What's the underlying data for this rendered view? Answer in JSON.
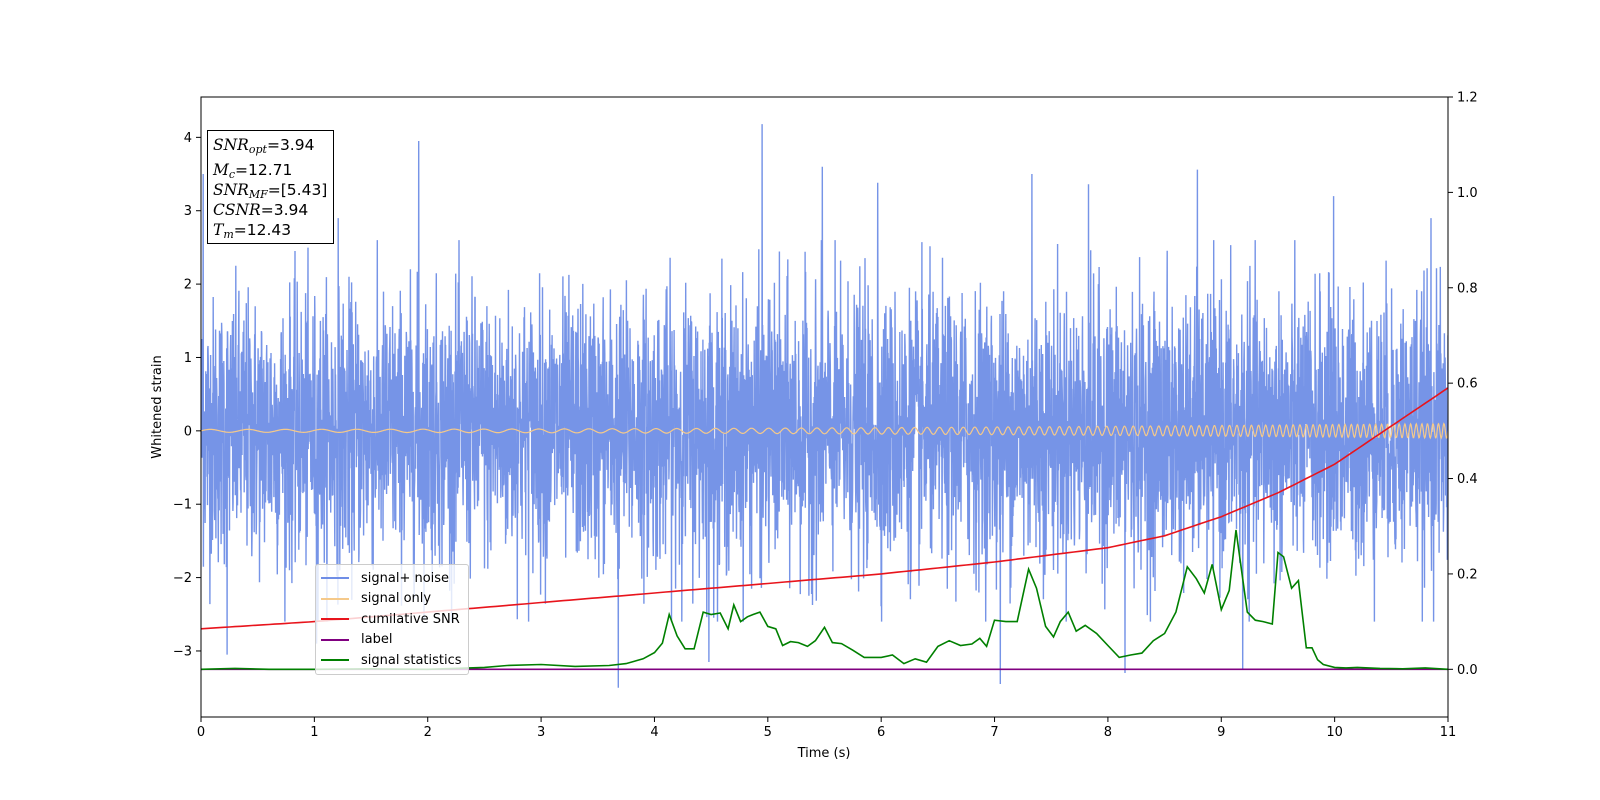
{
  "chart_data": {
    "type": "line",
    "xlabel": "Time (s)",
    "ylabel": "Whitened strain",
    "xlim": [
      0,
      11
    ],
    "ylim_left": [
      -3.9,
      4.55
    ],
    "ylim_right": [
      -0.1,
      1.2
    ],
    "x_ticks": [
      "0",
      "1",
      "2",
      "3",
      "4",
      "5",
      "6",
      "7",
      "8",
      "9",
      "10",
      "11"
    ],
    "y_ticks_left": [
      "−3",
      "−2",
      "−1",
      "0",
      "1",
      "2",
      "3",
      "4"
    ],
    "y_ticks_right": [
      "0.0",
      "0.2",
      "0.4",
      "0.6",
      "0.8",
      "1.0",
      "1.2"
    ],
    "grid": false,
    "legend_position": "lower-left",
    "series": [
      {
        "name": "signal+ noise",
        "axis": "left",
        "color": "#6f8ee6",
        "style": "noise",
        "amplitude_std": 0.9,
        "peaks": [
          [
            0.02,
            3.5
          ],
          [
            0.23,
            -3.05
          ],
          [
            1.02,
            -2.9
          ],
          [
            1.21,
            2.9
          ],
          [
            1.92,
            3.95
          ],
          [
            3.68,
            -3.5
          ],
          [
            4.48,
            -3.15
          ],
          [
            4.95,
            4.18
          ],
          [
            5.48,
            3.6
          ],
          [
            5.97,
            3.38
          ],
          [
            7.05,
            -3.45
          ],
          [
            7.33,
            3.5
          ],
          [
            7.83,
            3.36
          ],
          [
            8.15,
            -3.3
          ],
          [
            8.79,
            3.56
          ],
          [
            9.19,
            -3.25
          ],
          [
            9.99,
            3.2
          ],
          [
            10.85,
            2.9
          ]
        ]
      },
      {
        "name": "signal only",
        "axis": "left",
        "color": "#f5c98a",
        "style": "chirp",
        "amplitude_start": 0.02,
        "amplitude_end": 0.1
      },
      {
        "name": "cumilative SNR",
        "axis": "right",
        "color": "#e8141c",
        "x": [
          0,
          1,
          2,
          3,
          4,
          5,
          6,
          7,
          8,
          8.5,
          9,
          9.5,
          10,
          10.5,
          11
        ],
        "y": [
          0.085,
          0.1,
          0.12,
          0.14,
          0.16,
          0.18,
          0.2,
          0.225,
          0.255,
          0.28,
          0.32,
          0.37,
          0.43,
          0.51,
          0.59
        ]
      },
      {
        "name": "label",
        "axis": "right",
        "color": "#800080",
        "x": [
          0,
          11
        ],
        "y": [
          0,
          0
        ]
      },
      {
        "name": "signal statistics",
        "axis": "right",
        "color": "#008000",
        "x": [
          0,
          0.3,
          0.6,
          1.0,
          1.5,
          2.0,
          2.5,
          2.7,
          3.0,
          3.3,
          3.6,
          3.75,
          3.9,
          4.0,
          4.07,
          4.13,
          4.2,
          4.27,
          4.35,
          4.43,
          4.5,
          4.58,
          4.65,
          4.7,
          4.76,
          4.82,
          4.87,
          4.93,
          5.0,
          5.07,
          5.13,
          5.2,
          5.27,
          5.35,
          5.42,
          5.5,
          5.57,
          5.65,
          5.75,
          5.85,
          6.0,
          6.1,
          6.2,
          6.3,
          6.4,
          6.5,
          6.6,
          6.7,
          6.8,
          6.87,
          6.93,
          7.0,
          7.1,
          7.2,
          7.3,
          7.37,
          7.45,
          7.52,
          7.58,
          7.65,
          7.72,
          7.8,
          7.9,
          8.0,
          8.1,
          8.2,
          8.3,
          8.4,
          8.5,
          8.6,
          8.7,
          8.78,
          8.85,
          8.92,
          9.0,
          9.07,
          9.13,
          9.18,
          9.23,
          9.3,
          9.37,
          9.45,
          9.5,
          9.55,
          9.62,
          9.68,
          9.75,
          9.8,
          9.85,
          9.9,
          10.0,
          10.1,
          10.2,
          10.4,
          10.6,
          10.8,
          11.0
        ],
        "y": [
          0,
          0.002,
          0,
          0,
          0.001,
          0,
          0.004,
          0.008,
          0.01,
          0.006,
          0.008,
          0.012,
          0.022,
          0.035,
          0.055,
          0.115,
          0.07,
          0.043,
          0.043,
          0.12,
          0.115,
          0.118,
          0.085,
          0.135,
          0.1,
          0.11,
          0.115,
          0.12,
          0.09,
          0.085,
          0.05,
          0.058,
          0.056,
          0.048,
          0.06,
          0.088,
          0.056,
          0.054,
          0.04,
          0.025,
          0.025,
          0.03,
          0.012,
          0.022,
          0.015,
          0.048,
          0.06,
          0.05,
          0.053,
          0.065,
          0.048,
          0.103,
          0.1,
          0.1,
          0.21,
          0.17,
          0.09,
          0.068,
          0.1,
          0.12,
          0.08,
          0.092,
          0.075,
          0.05,
          0.025,
          0.03,
          0.034,
          0.06,
          0.075,
          0.12,
          0.215,
          0.19,
          0.16,
          0.22,
          0.125,
          0.165,
          0.292,
          0.205,
          0.12,
          0.103,
          0.1,
          0.095,
          0.245,
          0.236,
          0.17,
          0.186,
          0.045,
          0.045,
          0.02,
          0.01,
          0.004,
          0.003,
          0.004,
          0.002,
          0.001,
          0.003,
          0
        ]
      }
    ]
  },
  "info_box": {
    "snr_opt": {
      "base": "SNR",
      "sub": "opt",
      "value": "=3.94"
    },
    "mc": {
      "base": "M",
      "sub": "c",
      "value": "=12.71"
    },
    "snr_mf": {
      "base": "SNR",
      "sub": "MF",
      "value": "=[5.43]"
    },
    "csnr": {
      "base": "CSNR",
      "value": "=3.94"
    },
    "tm": {
      "base": "T",
      "sub": "m",
      "value": "=12.43"
    }
  },
  "legend": [
    {
      "label": "signal+ noise",
      "color": "#6f8ee6"
    },
    {
      "label": "signal only",
      "color": "#f5c98a"
    },
    {
      "label": "cumilative SNR",
      "color": "#e8141c"
    },
    {
      "label": "label",
      "color": "#800080"
    },
    {
      "label": "signal statistics",
      "color": "#008000"
    }
  ]
}
